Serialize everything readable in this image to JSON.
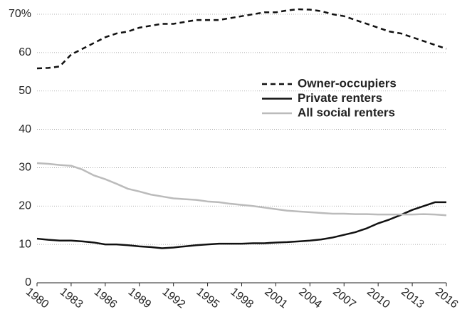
{
  "chart_data": {
    "type": "line",
    "x": [
      1980,
      1981,
      1982,
      1983,
      1984,
      1985,
      1986,
      1987,
      1988,
      1989,
      1990,
      1991,
      1992,
      1993,
      1994,
      1995,
      1996,
      1997,
      1998,
      1999,
      2000,
      2001,
      2002,
      2003,
      2004,
      2005,
      2006,
      2007,
      2008,
      2009,
      2010,
      2011,
      2012,
      2013,
      2014,
      2015,
      2016
    ],
    "series": [
      {
        "name": "Owner-occupiers",
        "color": "#111111",
        "line_style": "dashed",
        "values": [
          55.9,
          56,
          56.4,
          59.5,
          61,
          62.5,
          64,
          65,
          65.5,
          66.5,
          67,
          67.5,
          67.5,
          68,
          68.5,
          68.5,
          68.5,
          69,
          69.5,
          70,
          70.5,
          70.5,
          71,
          71.3,
          71.2,
          70.8,
          70,
          69.5,
          68.5,
          67.5,
          66.5,
          65.5,
          65,
          64,
          63,
          62,
          61
        ]
      },
      {
        "name": "Private renters",
        "color": "#111111",
        "line_style": "solid",
        "values": [
          11.5,
          11.2,
          11,
          11,
          10.8,
          10.5,
          10,
          10,
          9.8,
          9.5,
          9.3,
          9,
          9.2,
          9.5,
          9.8,
          10,
          10.2,
          10.2,
          10.2,
          10.3,
          10.3,
          10.5,
          10.6,
          10.8,
          11,
          11.3,
          11.8,
          12.5,
          13.2,
          14.2,
          15.5,
          16.5,
          17.7,
          19,
          20,
          21,
          21
        ]
      },
      {
        "name": "All social renters",
        "color": "#bbbbbb",
        "line_style": "solid",
        "values": [
          31.2,
          31,
          30.7,
          30.5,
          29.5,
          28,
          27,
          25.8,
          24.5,
          23.8,
          23,
          22.5,
          22,
          21.8,
          21.6,
          21.2,
          21,
          20.6,
          20.3,
          20,
          19.6,
          19.2,
          18.8,
          18.6,
          18.4,
          18.2,
          18,
          18,
          17.9,
          17.9,
          17.8,
          17.8,
          17.8,
          17.8,
          17.9,
          17.8,
          17.6
        ]
      }
    ],
    "xlim": [
      1980,
      2016
    ],
    "xticks": [
      1980,
      1983,
      1986,
      1989,
      1992,
      1995,
      1998,
      2001,
      2004,
      2007,
      2010,
      2013,
      2016
    ],
    "ylim": [
      0,
      70
    ],
    "yticks": [
      0,
      10,
      20,
      30,
      40,
      50,
      60,
      {
        "value": 70,
        "label": "70%"
      }
    ],
    "grid": true,
    "legend": "upper right"
  }
}
